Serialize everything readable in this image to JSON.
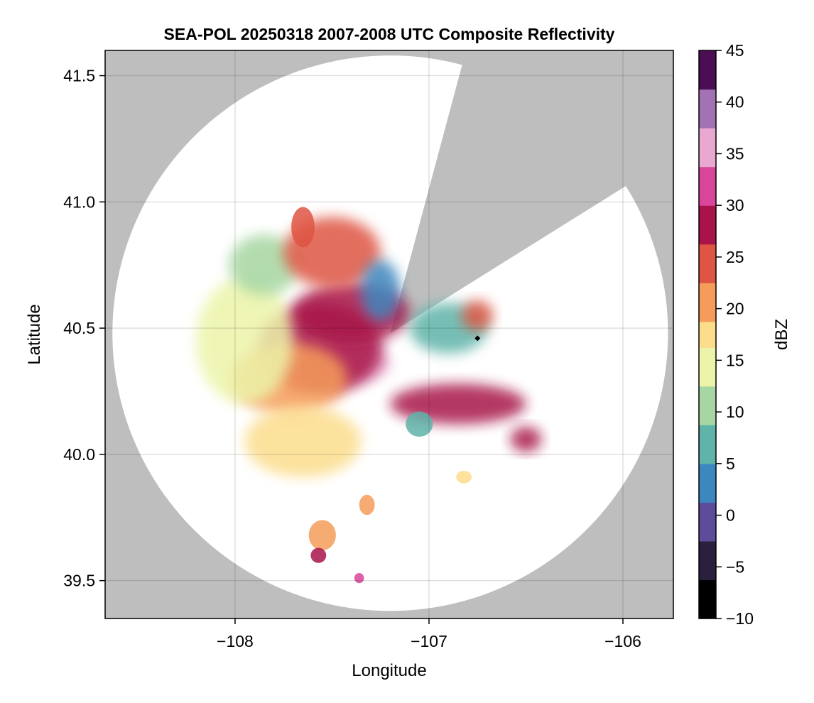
{
  "chart_data": {
    "type": "heatmap",
    "title": "SEA-POL 20250318 2007-2008 UTC Composite Reflectivity",
    "xlabel": "Longitude",
    "ylabel": "Latitude",
    "xlim": [
      -108.67,
      -105.74
    ],
    "ylim": [
      39.35,
      41.6
    ],
    "xticks": [
      -108,
      -107,
      -106
    ],
    "xtick_labels": [
      "−108",
      "−107",
      "−106"
    ],
    "yticks": [
      39.5,
      40.0,
      40.5,
      41.0,
      41.5
    ],
    "ytick_labels": [
      "39.5",
      "40.0",
      "40.5",
      "41.0",
      "41.5"
    ],
    "grid": true,
    "background_color": "#bebebe",
    "radar": {
      "center_lon": -107.2,
      "center_lat": 40.48,
      "coverage_radius_lat_deg": 1.1,
      "blocked_sector_az_deg": [
        15,
        58
      ]
    },
    "colorbar": {
      "label": "dBZ",
      "min": -10,
      "max": 45,
      "ticks": [
        -10,
        -5,
        0,
        5,
        10,
        15,
        20,
        25,
        30,
        35,
        40,
        45
      ],
      "tick_labels": [
        "−10",
        "−5",
        "0",
        "5",
        "10",
        "15",
        "20",
        "25",
        "30",
        "35",
        "40",
        "45"
      ],
      "colors": [
        "#000000",
        "#2a1f3d",
        "#5d4c9a",
        "#3d87bf",
        "#5fb3a8",
        "#a6d6a1",
        "#ecf4a9",
        "#fbdd8c",
        "#f59c5a",
        "#de5543",
        "#a8144a",
        "#d9459a",
        "#e9a8cf",
        "#a372b3",
        "#4b0d54"
      ]
    },
    "echo_cells": [
      {
        "lon": -107.42,
        "lat": 40.36,
        "rlon": 0.22,
        "rlat": 0.08,
        "dbz": 34
      },
      {
        "lon": -107.56,
        "lat": 40.42,
        "rlon": 0.32,
        "rlat": 0.18,
        "dbz": 27
      },
      {
        "lon": -107.4,
        "lat": 40.56,
        "rlon": 0.3,
        "rlat": 0.12,
        "dbz": 28
      },
      {
        "lon": -107.72,
        "lat": 40.3,
        "rlon": 0.3,
        "rlat": 0.14,
        "dbz": 22
      },
      {
        "lon": -107.95,
        "lat": 40.45,
        "rlon": 0.25,
        "rlat": 0.25,
        "dbz": 15
      },
      {
        "lon": -107.85,
        "lat": 40.75,
        "rlon": 0.18,
        "rlat": 0.12,
        "dbz": 11
      },
      {
        "lon": -107.5,
        "lat": 40.8,
        "rlon": 0.25,
        "rlat": 0.14,
        "dbz": 24
      },
      {
        "lon": -107.65,
        "lat": 40.9,
        "rlon": 0.06,
        "rlat": 0.08,
        "dbz": 24
      },
      {
        "lon": -107.25,
        "lat": 40.65,
        "rlon": 0.1,
        "rlat": 0.12,
        "dbz": 4
      },
      {
        "lon": -107.65,
        "lat": 40.05,
        "rlon": 0.3,
        "rlat": 0.14,
        "dbz": 16
      },
      {
        "lon": -106.85,
        "lat": 40.2,
        "rlon": 0.35,
        "rlat": 0.08,
        "dbz": 27
      },
      {
        "lon": -106.5,
        "lat": 40.06,
        "rlon": 0.08,
        "rlat": 0.05,
        "dbz": 28
      },
      {
        "lon": -106.9,
        "lat": 40.5,
        "rlon": 0.2,
        "rlat": 0.1,
        "dbz": 6
      },
      {
        "lon": -106.75,
        "lat": 40.55,
        "rlon": 0.08,
        "rlat": 0.06,
        "dbz": 25
      },
      {
        "lon": -107.05,
        "lat": 40.12,
        "rlon": 0.07,
        "rlat": 0.05,
        "dbz": 7
      },
      {
        "lon": -107.55,
        "lat": 39.68,
        "rlon": 0.07,
        "rlat": 0.06,
        "dbz": 20
      },
      {
        "lon": -107.57,
        "lat": 39.6,
        "rlon": 0.04,
        "rlat": 0.03,
        "dbz": 28
      },
      {
        "lon": -107.36,
        "lat": 39.51,
        "rlon": 0.025,
        "rlat": 0.02,
        "dbz": 31
      },
      {
        "lon": -106.82,
        "lat": 39.91,
        "rlon": 0.04,
        "rlat": 0.025,
        "dbz": 17
      },
      {
        "lon": -107.32,
        "lat": 39.8,
        "rlon": 0.04,
        "rlat": 0.04,
        "dbz": 22
      }
    ]
  }
}
